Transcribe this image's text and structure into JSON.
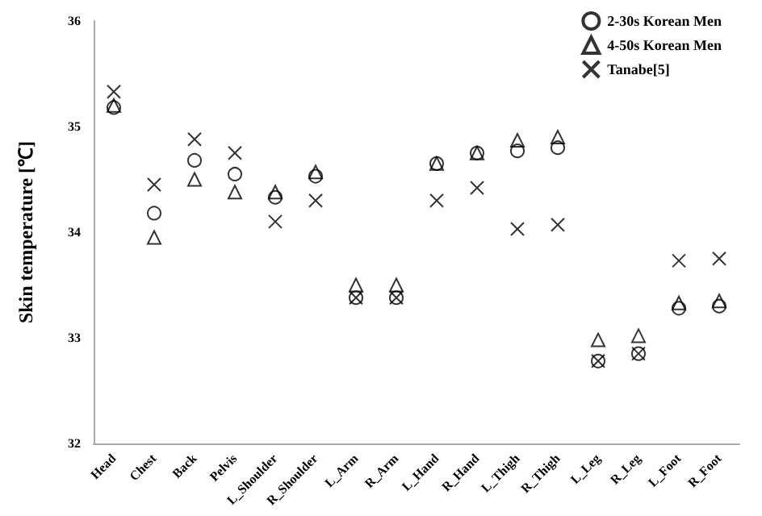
{
  "chart_data": {
    "type": "scatter",
    "ylabel": "Skin temperature [℃]",
    "categories": [
      "Head",
      "Chest",
      "Back",
      "Pelvis",
      "L_Shoulder",
      "R_Shoulder",
      "L_Arm",
      "R_Arm",
      "L_Hand",
      "R_Hand",
      "L_Thigh",
      "R_Thigh",
      "L_Leg",
      "R_Leg",
      "L_Foot",
      "R_Foot"
    ],
    "series": [
      {
        "name": "2-30s Korean Men",
        "color": "#000000",
        "marker": "circle",
        "values": [
          35.18,
          34.18,
          34.68,
          34.55,
          34.33,
          34.53,
          33.38,
          33.38,
          34.65,
          34.75,
          34.77,
          34.8,
          32.78,
          32.85,
          33.28,
          33.3
        ]
      },
      {
        "name": "4-50s Korean Men",
        "color": "#000000",
        "marker": "triangle",
        "values": [
          35.2,
          33.95,
          34.5,
          34.38,
          34.38,
          34.57,
          33.5,
          33.5,
          34.65,
          34.75,
          34.87,
          34.9,
          32.98,
          33.02,
          33.33,
          33.35
        ]
      },
      {
        "name": "Tanabe[5]",
        "color": "#000000",
        "marker": "cross",
        "values": [
          35.33,
          34.45,
          34.88,
          34.75,
          34.1,
          34.3,
          33.38,
          33.38,
          34.3,
          34.42,
          34.03,
          34.07,
          32.78,
          32.85,
          33.73,
          33.75
        ]
      }
    ],
    "ylim": [
      32,
      36
    ],
    "yticks": [
      32,
      33,
      34,
      35,
      36
    ],
    "grid": false,
    "legend": "top right"
  }
}
